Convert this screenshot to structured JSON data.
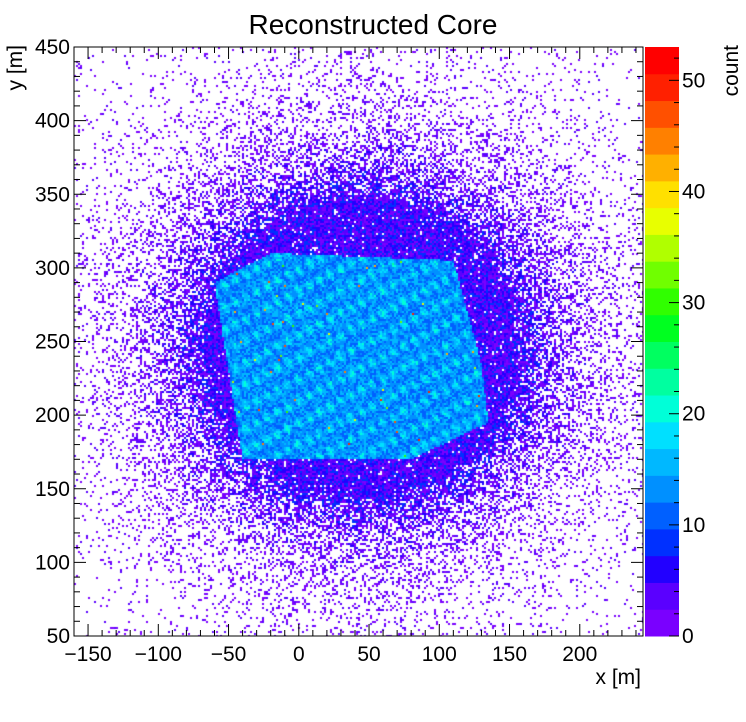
{
  "chart_data": {
    "type": "heatmap",
    "title": "Reconstructed Core",
    "xlabel": "x [m]",
    "ylabel": "y [m]",
    "zlabel": "count",
    "xlim": [
      -160,
      245
    ],
    "ylim": [
      50,
      450
    ],
    "zlim": [
      0,
      53
    ],
    "x_ticks": [
      "−150",
      "−100",
      "−50",
      "0",
      "50",
      "100",
      "150",
      "200"
    ],
    "x_tick_values": [
      -150,
      -100,
      -50,
      0,
      50,
      100,
      150,
      200
    ],
    "y_ticks": [
      "50",
      "100",
      "150",
      "200",
      "250",
      "300",
      "350",
      "400",
      "450"
    ],
    "y_tick_values": [
      50,
      100,
      150,
      200,
      250,
      300,
      350,
      400,
      450
    ],
    "z_ticks": [
      "0",
      "10",
      "20",
      "30",
      "40",
      "50"
    ],
    "z_tick_values": [
      0,
      10,
      20,
      30,
      40,
      50
    ],
    "colormap": "rainbow (violet-blue-cyan-green-yellow-orange-red)",
    "colors": [
      "#7a00ff",
      "#5a00ff",
      "#2200ff",
      "#0030ff",
      "#0060ff",
      "#0090ff",
      "#00b8ff",
      "#00e0ff",
      "#00ffd8",
      "#00ffa0",
      "#00ff60",
      "#00ff20",
      "#30ff00",
      "#70ff00",
      "#b0ff00",
      "#e8ff00",
      "#ffe000",
      "#ffb000",
      "#ff8000",
      "#ff5000",
      "#ff2000",
      "#ff0000"
    ],
    "grid": false,
    "distribution": {
      "description": "Dense hexagonal region of counts ~10-25 roughly spanning x -60 to 140, y 160 to 310, with lattice of local maxima; sparse violet background (counts 0-5) elsewhere",
      "center": [
        45,
        245
      ],
      "dense_region_polygon": [
        [
          -60,
          290
        ],
        [
          -20,
          310
        ],
        [
          110,
          305
        ],
        [
          130,
          235
        ],
        [
          135,
          195
        ],
        [
          80,
          170
        ],
        [
          -40,
          170
        ]
      ],
      "peak_value": 53
    }
  }
}
